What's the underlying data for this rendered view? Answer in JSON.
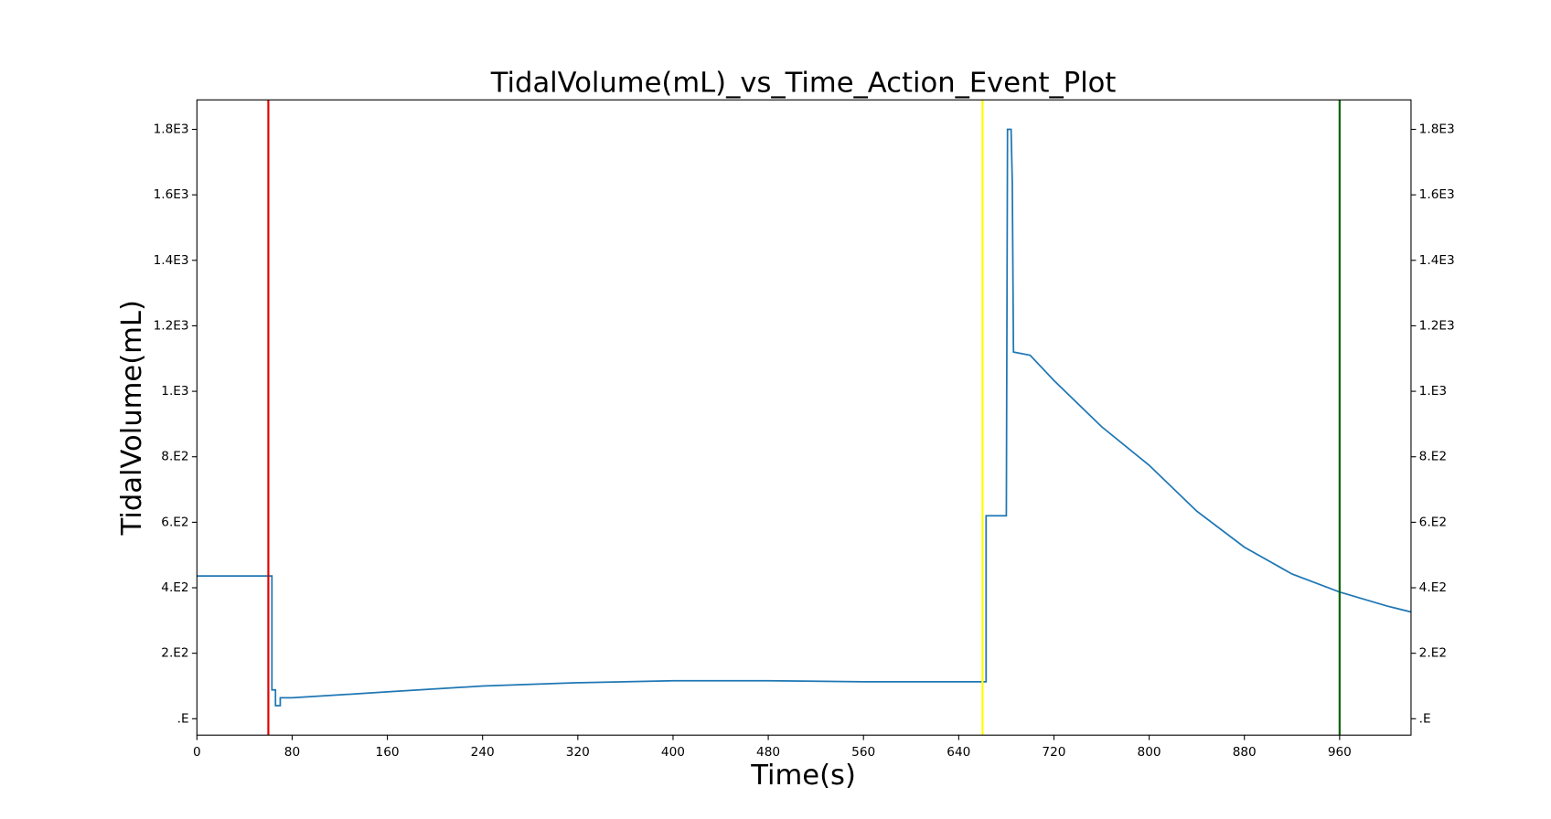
{
  "chart_data": {
    "type": "line",
    "title": "TidalVolume(mL)_vs_Time_Action_Event_Plot",
    "xlabel": "Time(s)",
    "ylabel": "TidalVolume(mL)",
    "xlim": [
      0,
      1020
    ],
    "ylim": [
      -50,
      1890
    ],
    "xticks": [
      0,
      80,
      160,
      240,
      320,
      400,
      480,
      560,
      640,
      720,
      800,
      880,
      960
    ],
    "yticks": [
      {
        "value": 0,
        "label": ".E"
      },
      {
        "value": 200,
        "label": "2.E2"
      },
      {
        "value": 400,
        "label": "4.E2"
      },
      {
        "value": 600,
        "label": "6.E2"
      },
      {
        "value": 800,
        "label": "8.E2"
      },
      {
        "value": 1000,
        "label": "1.E3"
      },
      {
        "value": 1200,
        "label": "1.2E3"
      },
      {
        "value": 1400,
        "label": "1.4E3"
      },
      {
        "value": 1600,
        "label": "1.6E3"
      },
      {
        "value": 1800,
        "label": "1.8E3"
      }
    ],
    "right_ticks": true,
    "event_lines": [
      {
        "x": 60,
        "color": "#e00000"
      },
      {
        "x": 660,
        "color": "#ffff00"
      },
      {
        "x": 960,
        "color": "#006400"
      }
    ],
    "series": [
      {
        "color": "#1f77b4",
        "x": [
          0,
          63,
          63,
          66,
          66,
          70,
          70,
          80,
          160,
          240,
          320,
          400,
          480,
          560,
          640,
          663,
          663,
          665,
          680,
          681,
          684,
          685,
          686,
          700,
          720,
          760,
          800,
          840,
          880,
          920,
          960,
          1000,
          1020
        ],
        "values": [
          436,
          436,
          88,
          88,
          40,
          40,
          64,
          64,
          82,
          100,
          110,
          116,
          116,
          113,
          113,
          113,
          620,
          620,
          620,
          1800,
          1800,
          1640,
          1120,
          1110,
          1033,
          892,
          774,
          634,
          524,
          442,
          387,
          344,
          326
        ]
      }
    ]
  }
}
